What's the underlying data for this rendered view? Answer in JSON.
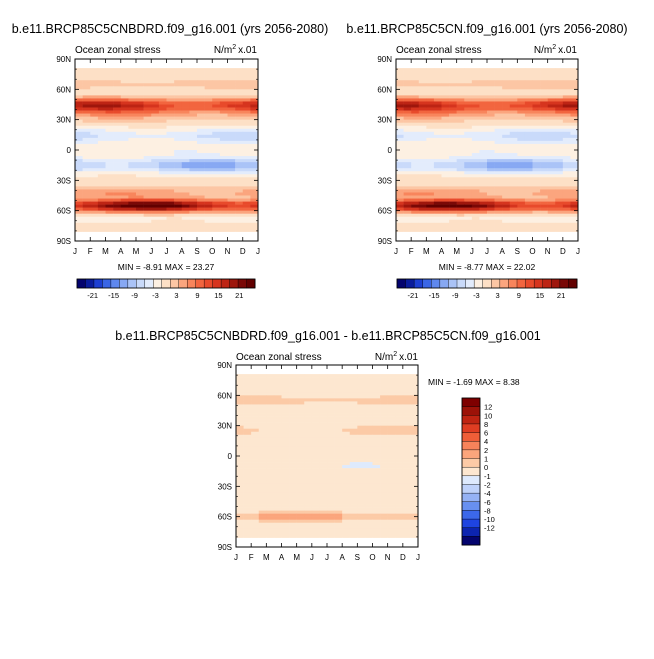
{
  "colors": {
    "palette_21": [
      "#04046e",
      "#0a1c9c",
      "#1d3fd2",
      "#3a66e6",
      "#5f88ee",
      "#87a8f3",
      "#aac3f7",
      "#c9dafa",
      "#e3ecfc",
      "#fdf0e2",
      "#fde0c6",
      "#fcc6a4",
      "#fba57e",
      "#f8855c",
      "#f2653f",
      "#e84a2b",
      "#d6341e",
      "#bd2414",
      "#9e160c",
      "#7a0806",
      "#620000"
    ],
    "palette_diff": [
      "#04046e",
      "#0c24b0",
      "#1e44e0",
      "#3c68ea",
      "#6890f0",
      "#95b2f5",
      "#bfd2fa",
      "#deeafd",
      "#fde7d0",
      "#fccaa6",
      "#fba57c",
      "#f7835a",
      "#ef5e38",
      "#df3d22",
      "#bf2412",
      "#9c1208",
      "#7e0000"
    ]
  },
  "chart_data": [
    {
      "type": "heatmap",
      "title": "b.e11.BRCP85C5CNBDRD.f09_g16.001 (yrs 2056-2080)",
      "left_label": "Ocean zonal stress",
      "units_base": "N/m",
      "units_sup": "2",
      "units_scale": "x.01",
      "x_ticks": [
        "J",
        "F",
        "M",
        "A",
        "M",
        "J",
        "J",
        "A",
        "S",
        "O",
        "N",
        "D",
        "J"
      ],
      "y_ticks": [
        "90N",
        "60N",
        "30N",
        "0",
        "30S",
        "60S",
        "90S"
      ],
      "ylim": [
        -90,
        90
      ],
      "stats": "MIN =  -8.91 MAX =  23.27",
      "colorbar_labels": [
        "-21",
        "-15",
        "-9",
        "-3",
        "3",
        "9",
        "15",
        "21"
      ],
      "colorbar_levels": [
        -21,
        -15,
        -9,
        -3,
        3,
        9,
        15,
        21
      ],
      "features": [
        {
          "lat": 40,
          "v": 6,
          "s": 9
        },
        {
          "lat": 45,
          "v": 8,
          "s": 6
        },
        {
          "lat": 14,
          "v": -5,
          "s": 8
        },
        {
          "lat": -15,
          "v": -8,
          "s": 8
        },
        {
          "lat": 0,
          "v": -2,
          "s": 6
        },
        {
          "lat": -55,
          "v": 17,
          "s": 6
        },
        {
          "lat": -42,
          "v": 4,
          "s": 5
        },
        {
          "lat": -68,
          "v": -2,
          "s": 4
        },
        {
          "lat": 65,
          "v": 2,
          "s": 4
        }
      ]
    },
    {
      "type": "heatmap",
      "title": "b.e11.BRCP85C5CN.f09_g16.001 (yrs 2056-2080)",
      "left_label": "Ocean zonal stress",
      "units_base": "N/m",
      "units_sup": "2",
      "units_scale": "x.01",
      "x_ticks": [
        "J",
        "F",
        "M",
        "A",
        "M",
        "J",
        "J",
        "A",
        "S",
        "O",
        "N",
        "D",
        "J"
      ],
      "y_ticks": [
        "90N",
        "60N",
        "30N",
        "0",
        "30S",
        "60S",
        "90S"
      ],
      "ylim": [
        -90,
        90
      ],
      "stats": "MIN =  -8.77 MAX =  22.02",
      "colorbar_labels": [
        "-21",
        "-15",
        "-9",
        "-3",
        "3",
        "9",
        "15",
        "21"
      ],
      "colorbar_levels": [
        -21,
        -15,
        -9,
        -3,
        3,
        9,
        15,
        21
      ],
      "features": [
        {
          "lat": 40,
          "v": 6,
          "s": 9
        },
        {
          "lat": 45,
          "v": 8,
          "s": 6
        },
        {
          "lat": 14,
          "v": -5,
          "s": 8
        },
        {
          "lat": -15,
          "v": -8,
          "s": 8
        },
        {
          "lat": 0,
          "v": -2,
          "s": 6
        },
        {
          "lat": -55,
          "v": 16,
          "s": 6
        },
        {
          "lat": -42,
          "v": 4,
          "s": 5
        },
        {
          "lat": -68,
          "v": -2,
          "s": 4
        },
        {
          "lat": 65,
          "v": 2,
          "s": 4
        }
      ]
    },
    {
      "type": "heatmap",
      "title": "b.e11.BRCP85C5CNBDRD.f09_g16.001 - b.e11.BRCP85C5CN.f09_g16.001",
      "left_label": "Ocean zonal stress",
      "units_base": "N/m",
      "units_sup": "2",
      "units_scale": "x.01",
      "x_ticks": [
        "J",
        "F",
        "M",
        "A",
        "M",
        "J",
        "J",
        "A",
        "S",
        "O",
        "N",
        "D",
        "J"
      ],
      "y_ticks": [
        "90N",
        "60N",
        "30N",
        "0",
        "30S",
        "60S",
        "90S"
      ],
      "ylim": [
        -90,
        90
      ],
      "stats": "MIN =  -1.69 MAX =   8.38",
      "colorbar_labels": [
        "12",
        "10",
        "8",
        "6",
        "4",
        "2",
        "1",
        "0",
        "-1",
        "-2",
        "-4",
        "-6",
        "-8",
        "-10",
        "-12"
      ],
      "colorbar_levels": [
        -12,
        -10,
        -8,
        -6,
        -4,
        -2,
        -1,
        0,
        1,
        2,
        4,
        6,
        8,
        10,
        12
      ],
      "features": [
        {
          "lat": 55,
          "v": 1.2,
          "s": 5
        },
        {
          "lat": 25,
          "v": 0.8,
          "s": 8
        },
        {
          "lat": -10,
          "v": -0.6,
          "s": 12
        },
        {
          "lat": -35,
          "v": -0.4,
          "s": 8
        },
        {
          "lat": -60,
          "v": 2.5,
          "s": 4
        },
        {
          "lat": 5,
          "v": 0.5,
          "s": 5
        }
      ]
    }
  ]
}
